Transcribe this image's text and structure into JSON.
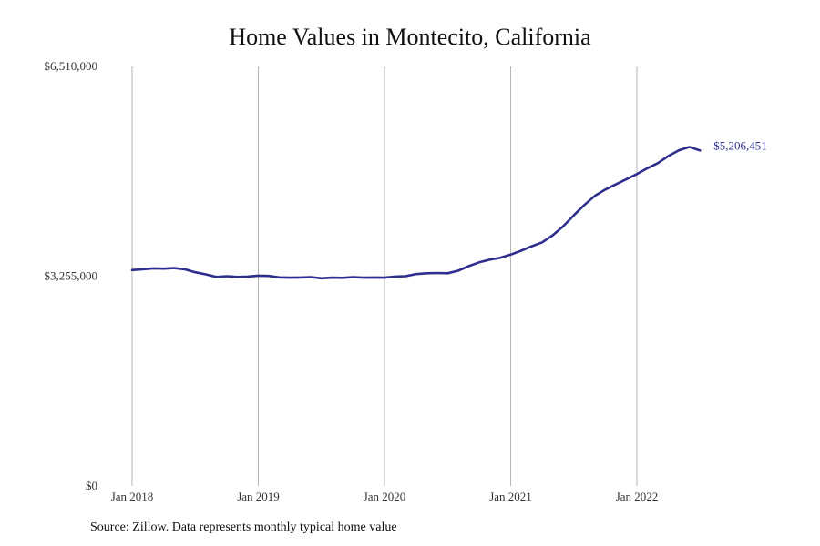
{
  "chart_data": {
    "type": "line",
    "title": "Home Values in Montecito, California",
    "xlabel": "",
    "ylabel": "",
    "ylim": [
      0,
      6510000
    ],
    "y_ticks": [
      "$0",
      "$3,255,000",
      "$6,510,000"
    ],
    "y_tick_values": [
      0,
      3255000,
      6510000
    ],
    "x_ticks": [
      "Jan 2018",
      "Jan 2019",
      "Jan 2020",
      "Jan 2021",
      "Jan 2022"
    ],
    "x_tick_values": [
      "2018-01",
      "2019-01",
      "2020-01",
      "2021-01",
      "2022-01"
    ],
    "x_range": [
      "2018-01",
      "2022-07"
    ],
    "grid": "vertical lines at x ticks",
    "line_color": "#2e2e8f",
    "series": [
      {
        "x": [
          "2018-01",
          "2018-02",
          "2018-03",
          "2018-04",
          "2018-05",
          "2018-06",
          "2018-07",
          "2018-08",
          "2018-09",
          "2018-10",
          "2018-11",
          "2018-12",
          "2019-01",
          "2019-02",
          "2019-03",
          "2019-04",
          "2019-05",
          "2019-06",
          "2019-07",
          "2019-08",
          "2019-09",
          "2019-10",
          "2019-11",
          "2019-12",
          "2020-01",
          "2020-02",
          "2020-03",
          "2020-04",
          "2020-05",
          "2020-06",
          "2020-07",
          "2020-08",
          "2020-09",
          "2020-10",
          "2020-11",
          "2020-12",
          "2021-01",
          "2021-02",
          "2021-03",
          "2021-04",
          "2021-05",
          "2021-06",
          "2021-07",
          "2021-08",
          "2021-09",
          "2021-10",
          "2021-11",
          "2021-12",
          "2022-01",
          "2022-02",
          "2022-03",
          "2022-04",
          "2022-05",
          "2022-06",
          "2022-07"
        ],
        "values": [
          3349000,
          3363000,
          3377000,
          3372000,
          3381000,
          3362000,
          3316000,
          3283000,
          3243000,
          3255000,
          3244000,
          3250000,
          3264000,
          3259000,
          3237000,
          3232000,
          3235000,
          3241000,
          3223000,
          3232000,
          3230000,
          3241000,
          3232000,
          3235000,
          3232000,
          3250000,
          3255000,
          3287000,
          3300000,
          3305000,
          3300000,
          3340000,
          3410000,
          3470000,
          3510000,
          3540000,
          3590000,
          3650000,
          3720000,
          3780000,
          3890000,
          4030000,
          4200000,
          4360000,
          4500000,
          4600000,
          4680000,
          4760000,
          4840000,
          4930000,
          5010000,
          5120000,
          5210000,
          5260000,
          5206451
        ]
      }
    ],
    "end_label": "$5,206,451",
    "end_label_color": "#2e2e8f"
  },
  "source": "Source: Zillow. Data represents monthly typical home value"
}
